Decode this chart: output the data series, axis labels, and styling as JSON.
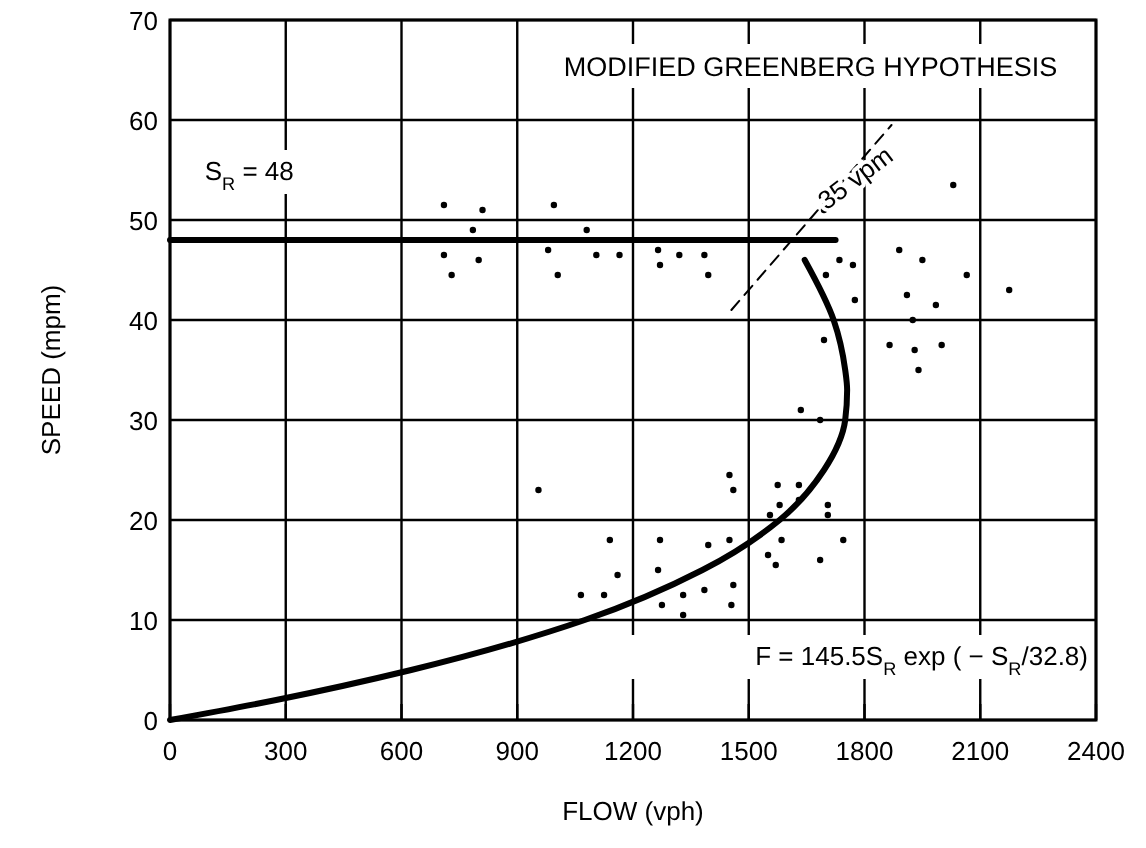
{
  "chart_data": {
    "type": "scatter",
    "title": "MODIFIED GREENBERG HYPOTHESIS",
    "xlabel": "FLOW (vph)",
    "ylabel": "SPEED (mpm)",
    "xlim": [
      0,
      2400
    ],
    "xticks": [
      0,
      300,
      600,
      900,
      1200,
      1500,
      1800,
      2100,
      2400
    ],
    "ylim": [
      0,
      70
    ],
    "yticks": [
      0,
      10,
      20,
      30,
      40,
      50,
      60,
      70
    ],
    "grid": true,
    "annotations": [
      "S$_{R}$ = 48",
      "35 vpm",
      "F = 145.5S$_{R}$ exp ( − S$_{R}$/32.8)"
    ],
    "series": [
      {
        "type": "scatter",
        "marker": "circle",
        "color": "#000000",
        "x": [
          710,
          810,
          995,
          785,
          1080,
          710,
          800,
          730,
          980,
          1005,
          1105,
          1165,
          1265,
          1270,
          1320,
          1385,
          1395,
          1695,
          1735,
          1770,
          1700,
          1775,
          2030,
          1890,
          1950,
          2065,
          2175,
          1910,
          1985,
          1925,
          1695,
          1865,
          1930,
          2000,
          1940,
          1635,
          1685,
          955,
          1450,
          1460,
          1575,
          1630,
          1580,
          1630,
          1705,
          1555,
          1705,
          1140,
          1270,
          1395,
          1450,
          1585,
          1745,
          1550,
          1570,
          1685,
          1160,
          1265,
          1385,
          1460,
          1065,
          1125,
          1275,
          1330,
          1330,
          1455
        ],
        "values": [
          51.5,
          51,
          51.5,
          49,
          49,
          46.5,
          46,
          44.5,
          47,
          44.5,
          46.5,
          46.5,
          47,
          45.5,
          46.5,
          46.5,
          44.5,
          51,
          46,
          45.5,
          44.5,
          42,
          53.5,
          47,
          46,
          44.5,
          43,
          42.5,
          41.5,
          40,
          38,
          37.5,
          37,
          37.5,
          35,
          31,
          30,
          23,
          24.5,
          23,
          23.5,
          23.5,
          21.5,
          22,
          21.5,
          20.5,
          20.5,
          18,
          18,
          17.5,
          18,
          18,
          18,
          16.5,
          15.5,
          16,
          14.5,
          15,
          13,
          13.5,
          12.5,
          12.5,
          11.5,
          12.5,
          10.5,
          11.5
        ]
      },
      {
        "type": "line",
        "color": "#000000",
        "x": [
          0,
          275,
          625,
          1075,
          1380,
          1580,
          1695,
          1750,
          1755,
          1750,
          1720,
          1645
        ],
        "values": [
          0,
          2,
          5,
          10,
          15,
          20,
          25,
          30,
          33,
          35,
          40,
          46
        ]
      },
      {
        "type": "line",
        "color": "#000000",
        "x": [
          0,
          1725
        ],
        "values": [
          48,
          48
        ]
      },
      {
        "type": "line",
        "color": "#000000",
        "line_style": "dashed",
        "x": [
          1455,
          1870
        ],
        "values": [
          41,
          59.5
        ]
      }
    ]
  }
}
